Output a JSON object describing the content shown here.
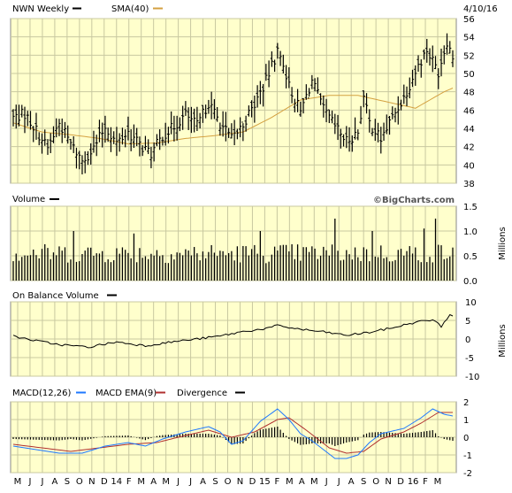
{
  "header": {
    "ticker_label": "NWN Weekly",
    "sma_label": "SMA(40)",
    "date": "4/10/16"
  },
  "colors": {
    "panel_bg": "#ffffcc",
    "grid": "#c8c8a0",
    "border": "#888888",
    "price": "#000000",
    "sma": "#d4a040",
    "volume": "#000000",
    "obv": "#000000",
    "macd": "#1e78ff",
    "macd_ema": "#b03030",
    "divergence": "#000000"
  },
  "chart_data": [
    {
      "type": "ohlc",
      "name": "price",
      "title": "NWN Weekly",
      "series_names": [
        "NWN Weekly",
        "SMA(40)"
      ],
      "ylim": [
        38,
        56
      ],
      "y_ticks": [
        "38",
        "40",
        "42",
        "44",
        "46",
        "48",
        "50",
        "52",
        "54",
        "56"
      ],
      "x_labels": [
        "M",
        "J",
        "J",
        "A",
        "S",
        "O",
        "N",
        "D",
        "14",
        "F",
        "M",
        "A",
        "M",
        "J",
        "J",
        "A",
        "S",
        "O",
        "N",
        "D",
        "15",
        "F",
        "M",
        "A",
        "M",
        "J",
        "J",
        "A",
        "S",
        "O",
        "N",
        "D",
        "16",
        "F",
        "M"
      ],
      "weeks": 154,
      "anchors_close": [
        [
          0,
          45.2
        ],
        [
          4,
          45.6
        ],
        [
          8,
          43.8
        ],
        [
          12,
          41.8
        ],
        [
          16,
          44.6
        ],
        [
          20,
          42.3
        ],
        [
          24,
          40.5
        ],
        [
          28,
          41.8
        ],
        [
          32,
          44.2
        ],
        [
          36,
          42.4
        ],
        [
          40,
          43.6
        ],
        [
          44,
          42.2
        ],
        [
          48,
          41.2
        ],
        [
          52,
          43.2
        ],
        [
          56,
          44.2
        ],
        [
          60,
          45.5
        ],
        [
          64,
          44.3
        ],
        [
          68,
          46.8
        ],
        [
          72,
          44.6
        ],
        [
          76,
          42.8
        ],
        [
          80,
          44.4
        ],
        [
          84,
          46.6
        ],
        [
          88,
          49.2
        ],
        [
          92,
          52.4
        ],
        [
          94,
          51.2
        ],
        [
          96,
          48.6
        ],
        [
          100,
          45.8
        ],
        [
          104,
          49.2
        ],
        [
          108,
          46.0
        ],
        [
          112,
          44.2
        ],
        [
          116,
          42.6
        ],
        [
          120,
          43.6
        ],
        [
          122,
          47.4
        ],
        [
          124,
          44.6
        ],
        [
          128,
          42.8
        ],
        [
          132,
          45.2
        ],
        [
          136,
          47.4
        ],
        [
          140,
          50.2
        ],
        [
          144,
          52.6
        ],
        [
          148,
          50.2
        ],
        [
          151,
          53.6
        ],
        [
          153,
          51.8
        ]
      ],
      "sma_anchors": [
        [
          0,
          44.6
        ],
        [
          10,
          43.6
        ],
        [
          20,
          43.3
        ],
        [
          30,
          42.9
        ],
        [
          40,
          42.3
        ],
        [
          50,
          42.4
        ],
        [
          60,
          42.9
        ],
        [
          70,
          43.2
        ],
        [
          80,
          43.6
        ],
        [
          90,
          45.2
        ],
        [
          100,
          47.1
        ],
        [
          110,
          47.6
        ],
        [
          120,
          47.6
        ],
        [
          130,
          46.9
        ],
        [
          140,
          46.2
        ],
        [
          150,
          48.0
        ],
        [
          153,
          48.4
        ]
      ]
    },
    {
      "type": "bar",
      "name": "volume",
      "title": "Volume",
      "unit_label": "Millions",
      "ylim": [
        0,
        1.5
      ],
      "y_ticks": [
        "0.0",
        "0.5",
        "1.0",
        "1.5"
      ],
      "typical_range": [
        0.35,
        0.75
      ],
      "spikes": [
        [
          21,
          1.0
        ],
        [
          42,
          0.95
        ],
        [
          86,
          1.0
        ],
        [
          112,
          1.25
        ],
        [
          125,
          1.0
        ],
        [
          143,
          1.05
        ],
        [
          147,
          1.25
        ]
      ]
    },
    {
      "type": "line",
      "name": "on_balance_volume",
      "title": "On Balance Volume",
      "unit_label": "Millions",
      "ylim": [
        -10,
        10
      ],
      "y_ticks": [
        "-10",
        "-5",
        "0",
        "5",
        "10"
      ],
      "anchors": [
        [
          0,
          0.8
        ],
        [
          8,
          -0.5
        ],
        [
          16,
          -1.5
        ],
        [
          26,
          -2.2
        ],
        [
          36,
          -0.8
        ],
        [
          46,
          -1.8
        ],
        [
          56,
          -0.7
        ],
        [
          64,
          0.0
        ],
        [
          72,
          0.8
        ],
        [
          80,
          2.0
        ],
        [
          88,
          2.8
        ],
        [
          92,
          3.6
        ],
        [
          100,
          2.6
        ],
        [
          108,
          1.9
        ],
        [
          116,
          1.0
        ],
        [
          124,
          1.8
        ],
        [
          132,
          3.0
        ],
        [
          140,
          4.5
        ],
        [
          146,
          5.2
        ],
        [
          149,
          3.4
        ],
        [
          152,
          6.6
        ],
        [
          153,
          6.3
        ]
      ]
    },
    {
      "type": "line",
      "name": "macd",
      "title": "MACD(12,26)",
      "series_names": [
        "MACD(12,26)",
        "MACD EMA(9)",
        "Divergence"
      ],
      "ylim": [
        -2,
        2
      ],
      "y_ticks": [
        "-2",
        "-1",
        "0",
        "1",
        "2"
      ],
      "macd_anchors": [
        [
          0,
          -0.5
        ],
        [
          8,
          -0.7
        ],
        [
          16,
          -0.9
        ],
        [
          24,
          -0.9
        ],
        [
          32,
          -0.5
        ],
        [
          40,
          -0.3
        ],
        [
          46,
          -0.5
        ],
        [
          52,
          -0.1
        ],
        [
          60,
          0.3
        ],
        [
          68,
          0.6
        ],
        [
          72,
          0.3
        ],
        [
          76,
          -0.4
        ],
        [
          80,
          -0.2
        ],
        [
          86,
          0.9
        ],
        [
          92,
          1.6
        ],
        [
          96,
          1.0
        ],
        [
          100,
          0.2
        ],
        [
          104,
          -0.2
        ],
        [
          108,
          -0.7
        ],
        [
          112,
          -1.2
        ],
        [
          116,
          -1.2
        ],
        [
          120,
          -1.0
        ],
        [
          124,
          -0.3
        ],
        [
          128,
          0.2
        ],
        [
          136,
          0.5
        ],
        [
          142,
          1.1
        ],
        [
          146,
          1.6
        ],
        [
          150,
          1.3
        ],
        [
          153,
          1.2
        ]
      ],
      "ema_anchors": [
        [
          0,
          -0.4
        ],
        [
          10,
          -0.6
        ],
        [
          20,
          -0.8
        ],
        [
          30,
          -0.6
        ],
        [
          40,
          -0.4
        ],
        [
          50,
          -0.3
        ],
        [
          60,
          0.1
        ],
        [
          68,
          0.4
        ],
        [
          76,
          0.0
        ],
        [
          84,
          0.3
        ],
        [
          92,
          1.0
        ],
        [
          96,
          1.1
        ],
        [
          102,
          0.4
        ],
        [
          110,
          -0.6
        ],
        [
          116,
          -0.9
        ],
        [
          122,
          -0.8
        ],
        [
          128,
          -0.1
        ],
        [
          136,
          0.3
        ],
        [
          142,
          0.8
        ],
        [
          148,
          1.4
        ],
        [
          153,
          1.4
        ]
      ]
    }
  ],
  "panels": {
    "volume_label": "Volume",
    "volume_unit": "Millions",
    "obv_label": "On Balance Volume",
    "obv_unit": "Millions",
    "macd_label": "MACD(12,26)",
    "macd_ema_label": "MACD EMA(9)",
    "divergence_label": "Divergence",
    "watermark": "©BigCharts.com"
  }
}
